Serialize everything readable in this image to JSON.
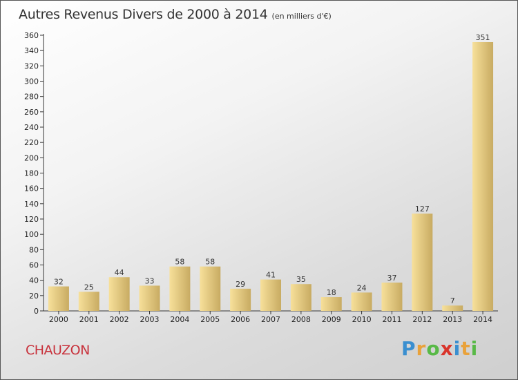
{
  "title": "Autres Revenus Divers de 2000 à 2014",
  "unit": "(en milliers d'€)",
  "commune": "CHAUZON",
  "logo": {
    "letters": [
      "P",
      "r",
      "o",
      "x",
      "i",
      "t",
      "i"
    ],
    "colors": [
      "#3a8fd0",
      "#e9a23b",
      "#58b947",
      "#d9342b",
      "#3a8fd0",
      "#e9a23b",
      "#58b947"
    ]
  },
  "colors": {
    "bar_light": "#f7e09a",
    "bar_dark": "#c8ab62",
    "commune": "#c8323c"
  },
  "chart_data": {
    "type": "bar",
    "categories": [
      "2000",
      "2001",
      "2002",
      "2003",
      "2004",
      "2005",
      "2006",
      "2007",
      "2008",
      "2009",
      "2010",
      "2011",
      "2012",
      "2013",
      "2014"
    ],
    "values": [
      32,
      25,
      44,
      33,
      58,
      58,
      29,
      41,
      35,
      18,
      24,
      37,
      127,
      7,
      351
    ],
    "title": "Autres Revenus Divers de 2000 à 2014",
    "xlabel": "",
    "ylabel": "",
    "ylim": [
      0,
      360
    ],
    "yticks": [
      0,
      20,
      40,
      60,
      80,
      100,
      120,
      140,
      160,
      180,
      200,
      220,
      240,
      260,
      280,
      300,
      320,
      340,
      360
    ],
    "grid": false,
    "legend": "none"
  }
}
